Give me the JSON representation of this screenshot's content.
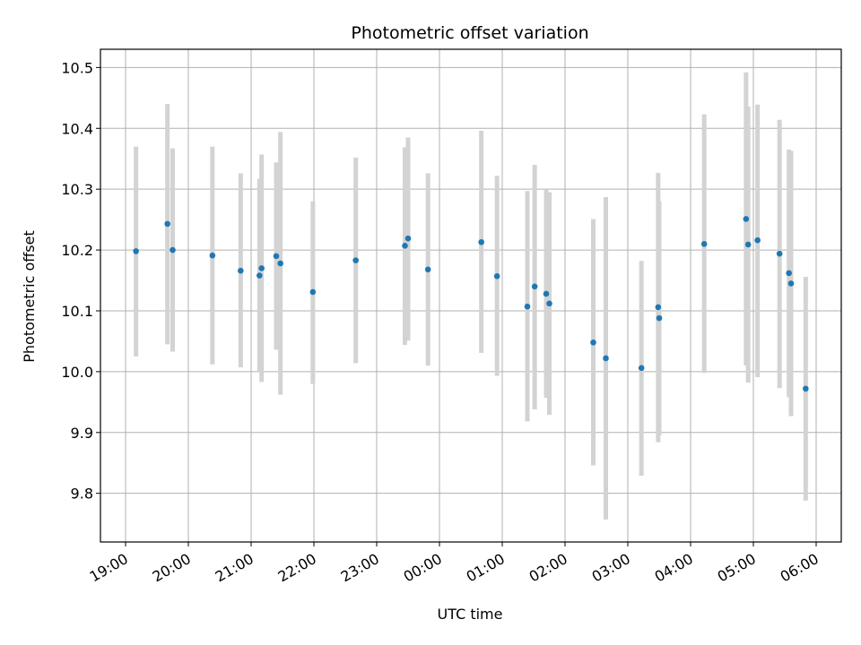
{
  "chart_data": {
    "type": "scatter",
    "title": "Photometric offset variation",
    "xlabel": "UTC time",
    "ylabel": "Photometric offset",
    "x_is_time": true,
    "xlim": [
      "19:00",
      "06:00"
    ],
    "ylim": [
      9.72,
      10.53
    ],
    "x_ticks": [
      "19:00",
      "20:00",
      "21:00",
      "22:00",
      "23:00",
      "00:00",
      "01:00",
      "02:00",
      "03:00",
      "04:00",
      "05:00",
      "06:00"
    ],
    "y_ticks": [
      9.8,
      9.9,
      10.0,
      10.1,
      10.2,
      10.3,
      10.4,
      10.5
    ],
    "grid": true,
    "marker_color": "#1f77b4",
    "errorbar_color": "#d3d3d3",
    "points": [
      {
        "t": "19:10",
        "y": 10.198,
        "lo": 10.025,
        "hi": 10.37
      },
      {
        "t": "19:40",
        "y": 10.243,
        "lo": 10.045,
        "hi": 10.44
      },
      {
        "t": "19:45",
        "y": 10.2,
        "lo": 10.033,
        "hi": 10.367
      },
      {
        "t": "20:23",
        "y": 10.191,
        "lo": 10.012,
        "hi": 10.37
      },
      {
        "t": "20:50",
        "y": 10.166,
        "lo": 10.007,
        "hi": 10.326
      },
      {
        "t": "21:08",
        "y": 10.158,
        "lo": 10.0,
        "hi": 10.317
      },
      {
        "t": "21:10",
        "y": 10.17,
        "lo": 9.983,
        "hi": 10.357
      },
      {
        "t": "21:24",
        "y": 10.19,
        "lo": 10.036,
        "hi": 10.344
      },
      {
        "t": "21:28",
        "y": 10.178,
        "lo": 9.962,
        "hi": 10.394
      },
      {
        "t": "21:59",
        "y": 10.131,
        "lo": 9.98,
        "hi": 10.28
      },
      {
        "t": "22:40",
        "y": 10.183,
        "lo": 10.014,
        "hi": 10.352
      },
      {
        "t": "23:27",
        "y": 10.207,
        "lo": 10.044,
        "hi": 10.369
      },
      {
        "t": "23:30",
        "y": 10.219,
        "lo": 10.051,
        "hi": 10.385
      },
      {
        "t": "23:49",
        "y": 10.168,
        "lo": 10.01,
        "hi": 10.326
      },
      {
        "t": "00:40",
        "y": 10.213,
        "lo": 10.031,
        "hi": 10.396
      },
      {
        "t": "00:55",
        "y": 10.157,
        "lo": 9.993,
        "hi": 10.322
      },
      {
        "t": "01:24",
        "y": 10.107,
        "lo": 9.918,
        "hi": 10.297
      },
      {
        "t": "01:31",
        "y": 10.14,
        "lo": 9.938,
        "hi": 10.34
      },
      {
        "t": "01:42",
        "y": 10.128,
        "lo": 9.957,
        "hi": 10.299
      },
      {
        "t": "01:45",
        "y": 10.112,
        "lo": 9.929,
        "hi": 10.295
      },
      {
        "t": "02:27",
        "y": 10.048,
        "lo": 9.846,
        "hi": 10.251
      },
      {
        "t": "02:39",
        "y": 10.022,
        "lo": 9.757,
        "hi": 10.287
      },
      {
        "t": "03:13",
        "y": 10.006,
        "lo": 9.829,
        "hi": 10.182
      },
      {
        "t": "03:29",
        "y": 10.106,
        "lo": 9.884,
        "hi": 10.327
      },
      {
        "t": "03:30",
        "y": 10.088,
        "lo": 9.895,
        "hi": 10.28
      },
      {
        "t": "04:13",
        "y": 10.21,
        "lo": 9.998,
        "hi": 10.423
      },
      {
        "t": "04:53",
        "y": 10.251,
        "lo": 10.01,
        "hi": 10.492
      },
      {
        "t": "04:55",
        "y": 10.209,
        "lo": 9.982,
        "hi": 10.436
      },
      {
        "t": "05:04",
        "y": 10.216,
        "lo": 9.991,
        "hi": 10.439
      },
      {
        "t": "05:25",
        "y": 10.194,
        "lo": 9.973,
        "hi": 10.414
      },
      {
        "t": "05:34",
        "y": 10.162,
        "lo": 9.958,
        "hi": 10.365
      },
      {
        "t": "05:36",
        "y": 10.145,
        "lo": 9.927,
        "hi": 10.363
      },
      {
        "t": "05:50",
        "y": 9.972,
        "lo": 9.788,
        "hi": 10.156
      }
    ]
  }
}
